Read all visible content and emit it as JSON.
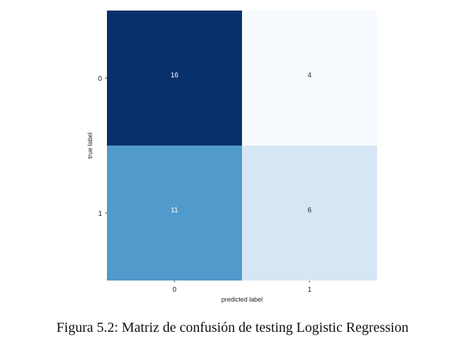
{
  "caption": "Figura 5.2: Matriz de confusión de testing Logistic Regression",
  "chart_data": {
    "type": "heatmap",
    "title": "",
    "xlabel": "predicted label",
    "ylabel": "true label",
    "x_categories": [
      "0",
      "1"
    ],
    "y_categories": [
      "0",
      "1"
    ],
    "values": [
      [
        16,
        4
      ],
      [
        11,
        6
      ]
    ],
    "colormap": "Blues",
    "color_range": [
      4,
      16
    ],
    "grid": false,
    "colorbar": false,
    "text_colors": {
      "dark": "#ffffff",
      "light": "#262626"
    }
  }
}
